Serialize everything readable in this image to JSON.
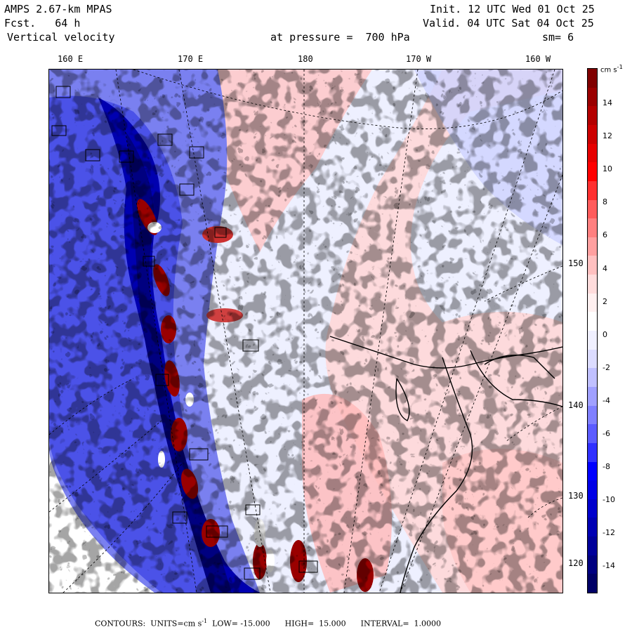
{
  "header": {
    "model": "AMPS 2.67-km MPAS",
    "fcst_label": "Fcst.",
    "fcst_value": "64 h",
    "field": "Vertical velocity",
    "init": "Init. 12 UTC Wed 01 Oct 25",
    "valid": "Valid. 04 UTC Sat 04 Oct 25",
    "pressure": "at pressure =  700 hPa",
    "smooth": "sm= 6"
  },
  "axes": {
    "top": [
      "160 E",
      "170 E",
      "180",
      "170 W",
      "160 W"
    ],
    "right": [
      "150 W",
      "140 W",
      "130 W",
      "120 W"
    ]
  },
  "colorbar": {
    "units": "cm s",
    "units_exp": "-1",
    "labels": [
      "14",
      "12",
      "10",
      "8",
      "6",
      "4",
      "2",
      "0",
      "-2",
      "-4",
      "-6",
      "-8",
      "-10",
      "-12",
      "-14"
    ],
    "levels_top_to_bottom": [
      "#800000",
      "#9a0000",
      "#b30000",
      "#cc0000",
      "#e60000",
      "#ff0000",
      "#ff3030",
      "#ff5c5c",
      "#ff8080",
      "#ffa0a0",
      "#ffc0c0",
      "#ffdcdc",
      "#fff0f0",
      "#ffffff",
      "#f0f0ff",
      "#dcdcff",
      "#c0c0ff",
      "#a0a0ff",
      "#8080ff",
      "#5c5cff",
      "#3030ff",
      "#0000ff",
      "#0000e6",
      "#0000cc",
      "#0000b3",
      "#00009a",
      "#000080",
      "#000066"
    ]
  },
  "footer": {
    "contours": "CONTOURS:",
    "units_label": "UNITS=cm s",
    "units_exp": "-1",
    "low": "LOW= -15.000",
    "high": "HIGH=  15.000",
    "interval": "INTERVAL=  1.0000"
  }
}
